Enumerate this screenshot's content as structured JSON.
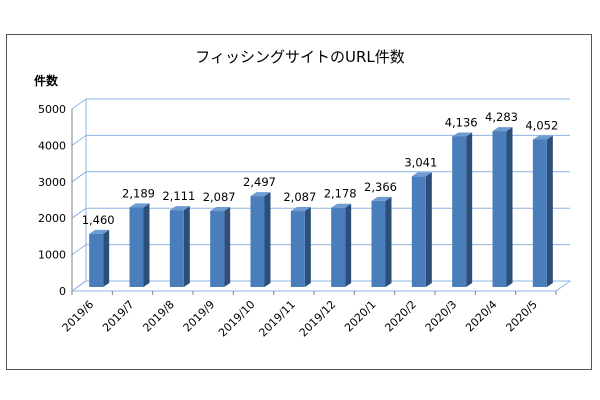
{
  "chart_data": {
    "type": "bar",
    "title": "フィッシングサイトのURL件数",
    "ylabel": "件数",
    "xlabel": "",
    "categories": [
      "2019/6",
      "2019/7",
      "2019/8",
      "2019/9",
      "2019/10",
      "2019/11",
      "2019/12",
      "2020/1",
      "2020/2",
      "2020/3",
      "2020/4",
      "2020/5"
    ],
    "values": [
      1460,
      2189,
      2111,
      2087,
      2497,
      2087,
      2178,
      2366,
      3041,
      4136,
      4283,
      4052
    ],
    "value_labels": [
      "1,460",
      "2,189",
      "2,111",
      "2,087",
      "2,497",
      "2,087",
      "2,178",
      "2,366",
      "3,041",
      "4,136",
      "4,283",
      "4,052"
    ],
    "ylim": [
      0,
      5000
    ],
    "yticks": [
      0,
      1000,
      2000,
      3000,
      4000,
      5000
    ],
    "ytick_labels": [
      "0",
      "1000",
      "2000",
      "3000",
      "4000",
      "5000"
    ],
    "grid": true,
    "legend": "none",
    "colors": {
      "bar_front": "#4a7ebb",
      "bar_side": "#2c4e7a",
      "bar_top": "#6f9bd3",
      "grid": "#8eb4e3"
    }
  }
}
